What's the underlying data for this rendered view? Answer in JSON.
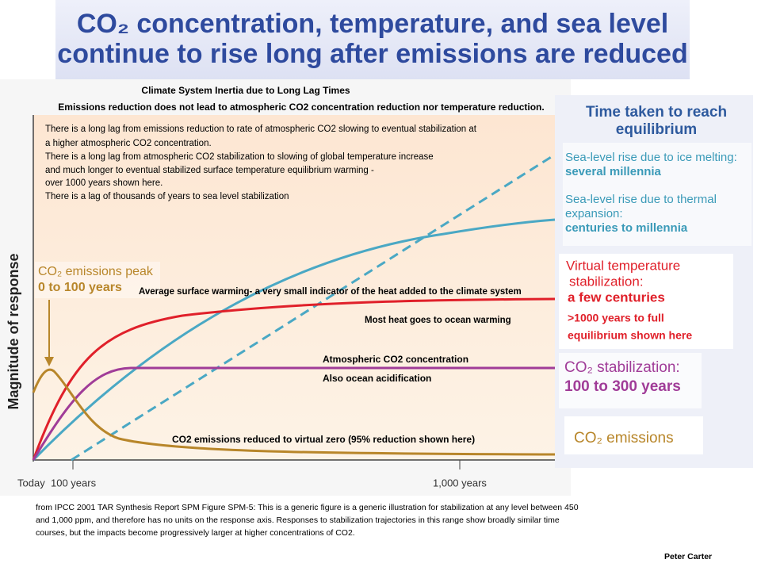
{
  "header": {
    "title_lines": [
      "CO₂ concentration, temperature, and sea level",
      "continue to rise long after emissions are reduced"
    ]
  },
  "chart": {
    "heading": "Climate System Inertia due to Long Lag Times",
    "subheading": "Emissions reduction does not lead to atmospheric CO2 concentration reduction nor temperature reduction.",
    "notes": [
      "There is a long lag from emissions reduction to rate of atmospheric CO2 slowing to eventual stabilization at",
      "a higher atmospheric CO2 concentration.",
      "There is a long lag from atmospheric CO2 stabilization to slowing of global temperature increase",
      "and much longer to eventual stabilized surface  temperature equilibrium warming -",
      "over 1000 years shown here.",
      "There is a lag of thousands of years to sea level stabilization"
    ],
    "axis_label": "Magnitude of response",
    "x_labels": [
      "Today",
      "100 years",
      "1,000 years"
    ],
    "peak_label": [
      "CO₂ emissions peak",
      "0 to 100 years"
    ],
    "curve_labels": [
      "Average surface warming- a very small indicator of the heat added to the climate  system",
      "Most heat goes to ocean warming",
      "Atmospheric CO2  concentration",
      "Also ocean acidification",
      "CO2 emissions reduced to virtual zero (95% reduction shown here)"
    ]
  },
  "panel": {
    "heading": [
      "Time taken to reach",
      "equilibrium"
    ],
    "ice": [
      "Sea-level rise due to ice melting:",
      "several millennia"
    ],
    "thermal": [
      "Sea-level rise due to thermal",
      "expansion:",
      "centuries to millennia"
    ],
    "temperature": [
      "Virtual temperature",
      "stabilization:",
      "a few centuries",
      ">1000 years to full",
      "equilibrium shown here"
    ],
    "co2_stabilization": [
      "CO₂ stabilization:",
      "100 to 300 years"
    ],
    "co2_emissions": "CO₂ emissions"
  },
  "footer": {
    "source": [
      "from IPCC 2001 TAR Synthesis Report SPM Figure SPM-5: This is a generic figure is a generic illustration for stabilization  at any level between 450",
      "and 1,000 ppm, and therefore has no units on the response axis. Responses to stabilization trajectories in this range show broadly similar time",
      "courses, but the impacts become progressively larger at higher concentrations of CO2."
    ],
    "author": "Peter Carter"
  }
}
